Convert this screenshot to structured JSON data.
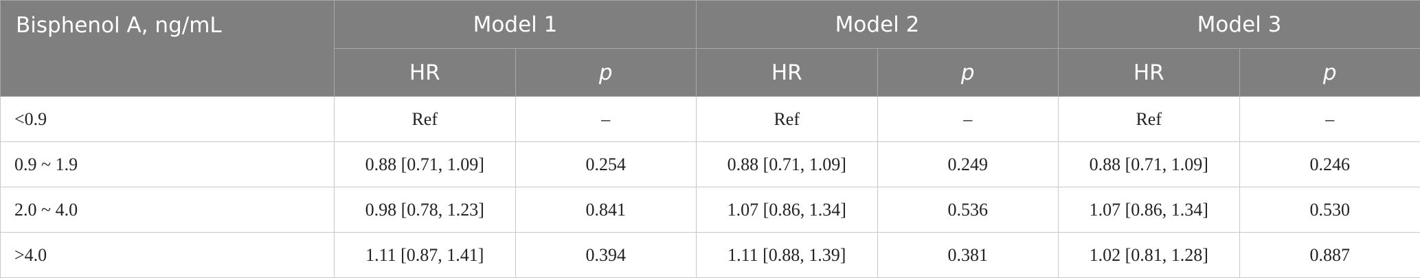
{
  "table": {
    "corner": "Bisphenol A, ng/mL",
    "models": [
      "Model 1",
      "Model 2",
      "Model 3"
    ],
    "subheaders": [
      "HR",
      "p",
      "HR",
      "p",
      "HR",
      "p"
    ],
    "rows": [
      [
        "<0.9",
        "Ref",
        "–",
        "Ref",
        "–",
        "Ref",
        "–"
      ],
      [
        "0.9 ~ 1.9",
        "0.88 [0.71, 1.09]",
        "0.254",
        "0.88 [0.71, 1.09]",
        "0.249",
        "0.88 [0.71, 1.09]",
        "0.246"
      ],
      [
        "2.0 ~ 4.0",
        "0.98 [0.78, 1.23]",
        "0.841",
        "1.07 [0.86, 1.34]",
        "0.536",
        "1.07 [0.86, 1.34]",
        "0.530"
      ],
      [
        ">4.0",
        "1.11 [0.87, 1.41]",
        "0.394",
        "1.11 [0.88, 1.39]",
        "0.381",
        "1.02 [0.81, 1.28]",
        "0.887"
      ]
    ]
  }
}
